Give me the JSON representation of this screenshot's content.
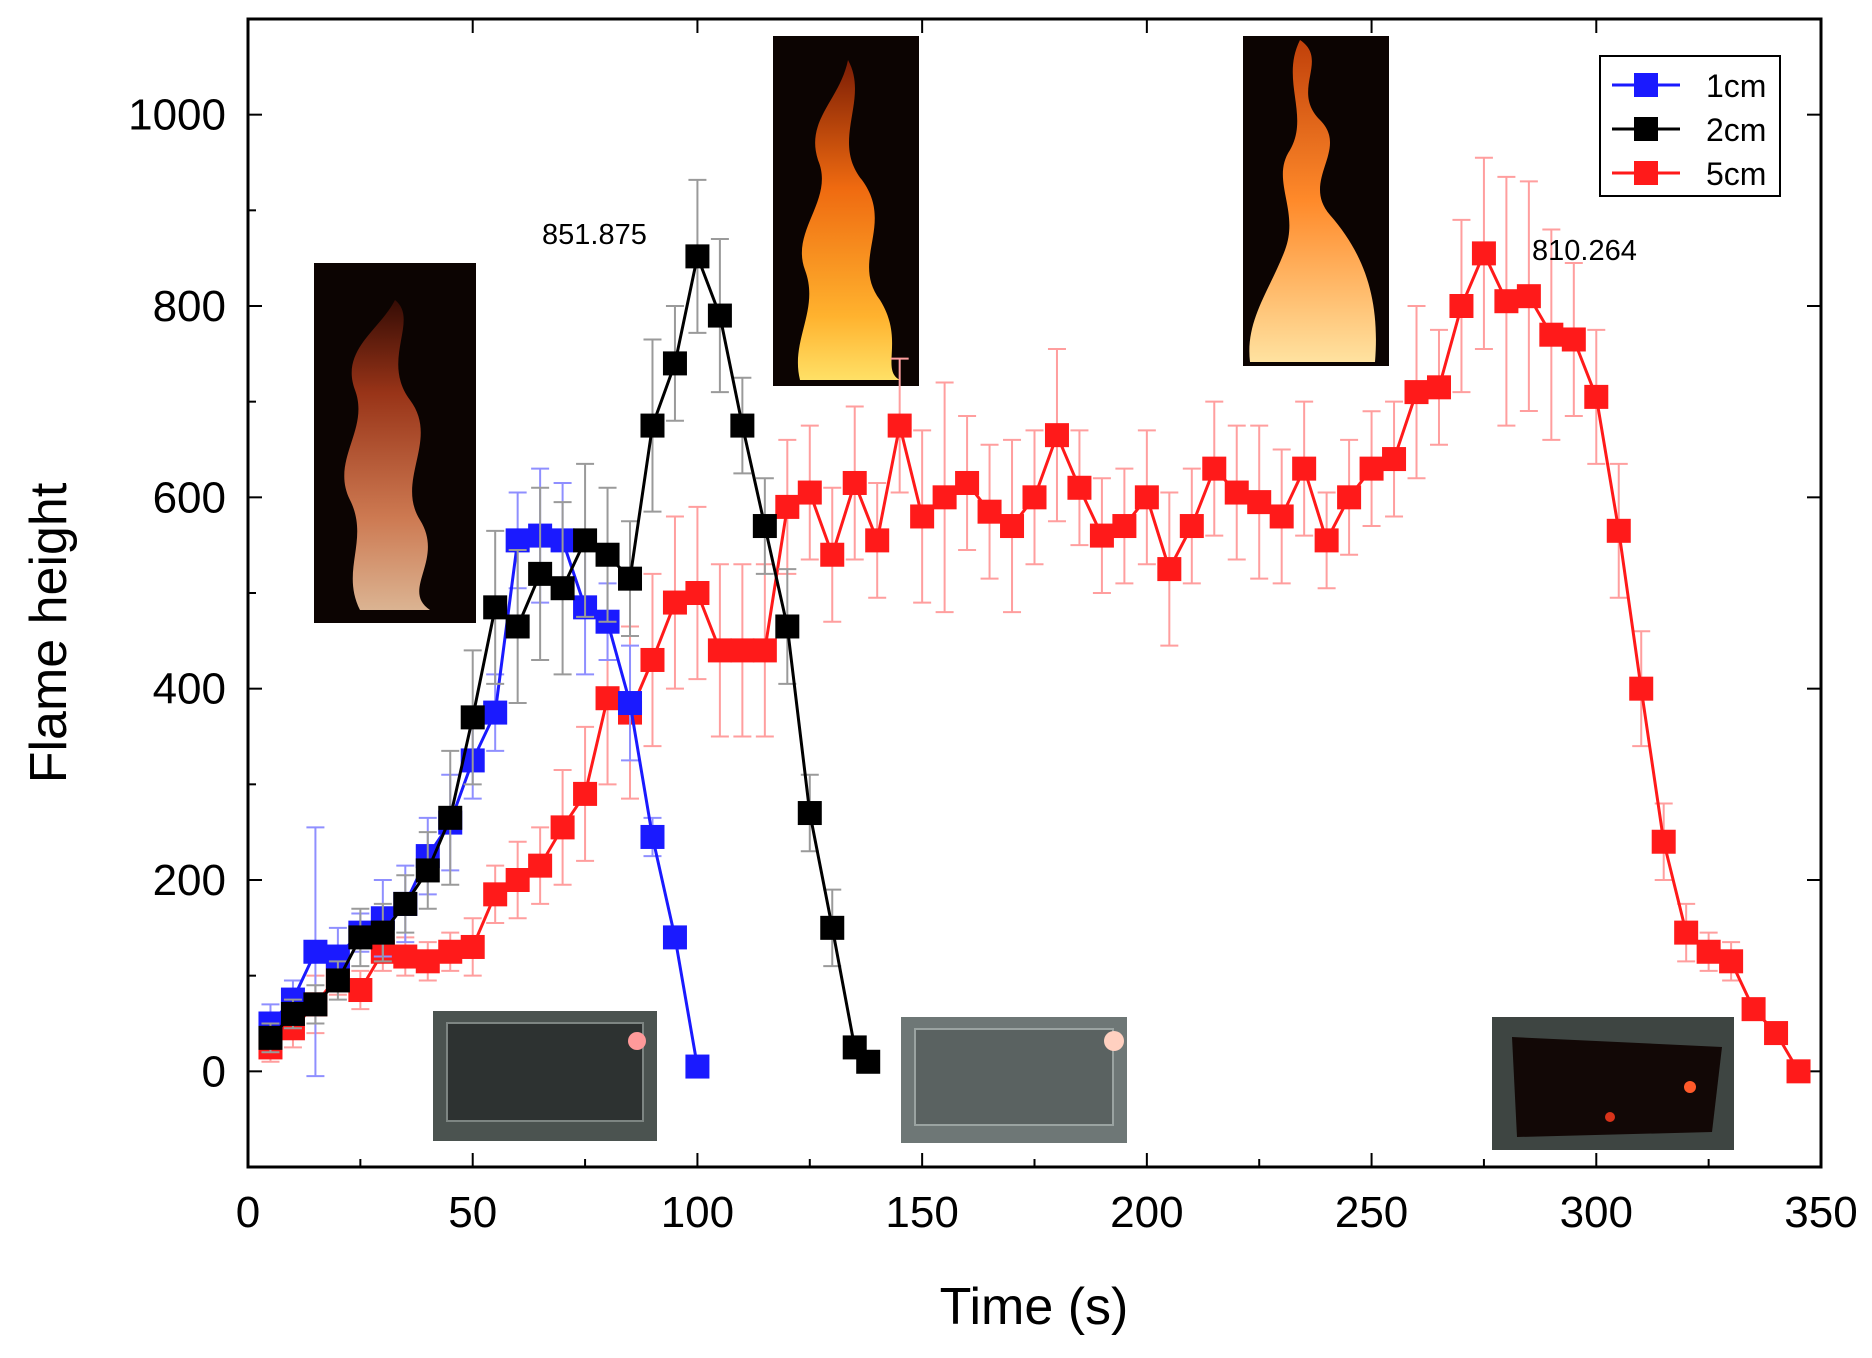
{
  "chart_data": {
    "type": "line",
    "title": "",
    "xlabel": "Time (s)",
    "ylabel": "Flame height",
    "xlim": [
      0,
      350
    ],
    "ylim": [
      -100,
      1100
    ],
    "xticks": [
      0,
      50,
      100,
      150,
      200,
      250,
      300,
      350
    ],
    "yticks": [
      0,
      200,
      400,
      600,
      800,
      1000
    ],
    "grid": false,
    "legend_position": "top-right",
    "colors": {
      "1cm": "#1a1aff",
      "2cm": "#000000",
      "5cm": "#ff1a1a"
    },
    "series": [
      {
        "name": "1cm",
        "x": [
          5,
          10,
          15,
          20,
          25,
          30,
          35,
          40,
          45,
          50,
          55,
          60,
          65,
          70,
          75,
          80,
          85,
          90,
          95,
          100
        ],
        "y": [
          50,
          75,
          125,
          120,
          145,
          160,
          175,
          225,
          260,
          325,
          375,
          555,
          560,
          555,
          485,
          470,
          385,
          245,
          140,
          5
        ],
        "err": [
          20,
          20,
          130,
          30,
          20,
          40,
          40,
          40,
          50,
          40,
          40,
          50,
          70,
          60,
          70,
          40,
          60,
          20,
          10,
          8
        ]
      },
      {
        "name": "2cm",
        "x": [
          5,
          10,
          15,
          20,
          25,
          30,
          35,
          40,
          45,
          50,
          55,
          60,
          65,
          70,
          75,
          80,
          85,
          90,
          95,
          100,
          105,
          110,
          115,
          120,
          125,
          130,
          135,
          138
        ],
        "y": [
          35,
          60,
          70,
          95,
          140,
          145,
          175,
          210,
          265,
          370,
          485,
          465,
          520,
          505,
          555,
          540,
          515,
          675,
          740,
          851.875,
          790,
          675,
          570,
          465,
          270,
          150,
          25,
          10
        ],
        "err": [
          15,
          15,
          20,
          20,
          30,
          30,
          30,
          40,
          70,
          70,
          80,
          80,
          90,
          90,
          80,
          70,
          60,
          90,
          60,
          80,
          80,
          50,
          50,
          60,
          40,
          40,
          10,
          10
        ]
      },
      {
        "name": "5cm",
        "x": [
          5,
          10,
          15,
          20,
          25,
          30,
          35,
          40,
          45,
          50,
          55,
          60,
          65,
          70,
          75,
          80,
          85,
          90,
          95,
          100,
          105,
          110,
          115,
          120,
          125,
          130,
          135,
          140,
          145,
          150,
          155,
          160,
          165,
          170,
          175,
          180,
          185,
          190,
          195,
          200,
          205,
          210,
          215,
          220,
          225,
          230,
          235,
          240,
          245,
          250,
          255,
          260,
          265,
          270,
          275,
          280,
          285,
          290,
          295,
          300,
          305,
          310,
          315,
          320,
          325,
          330,
          335,
          340,
          345
        ],
        "y": [
          25,
          45,
          70,
          100,
          85,
          125,
          120,
          115,
          125,
          130,
          185,
          200,
          215,
          255,
          290,
          390,
          375,
          430,
          490,
          500,
          440,
          440,
          440,
          590,
          605,
          540,
          615,
          555,
          675,
          580,
          600,
          615,
          585,
          570,
          600,
          665,
          610,
          560,
          570,
          600,
          525,
          570,
          630,
          605,
          595,
          580,
          630,
          555,
          600,
          630,
          640,
          710,
          715,
          800,
          855,
          805,
          810.264,
          770,
          765,
          705,
          565,
          400,
          240,
          145,
          125,
          115,
          65,
          40,
          0
        ],
        "err": [
          15,
          20,
          30,
          20,
          20,
          20,
          20,
          20,
          20,
          30,
          30,
          40,
          40,
          60,
          70,
          90,
          90,
          90,
          90,
          90,
          90,
          90,
          90,
          70,
          70,
          70,
          80,
          60,
          70,
          90,
          120,
          70,
          70,
          90,
          70,
          90,
          60,
          60,
          60,
          70,
          80,
          60,
          70,
          70,
          80,
          70,
          70,
          50,
          60,
          60,
          60,
          90,
          60,
          90,
          100,
          130,
          120,
          110,
          80,
          70,
          70,
          60,
          40,
          30,
          20,
          20,
          10,
          10,
          10
        ]
      }
    ],
    "annotations": [
      "851.875",
      "810.264"
    ]
  },
  "images": {
    "flame_1cm": "flame photograph (1cm)",
    "flame_2cm": "flame photograph (2cm)",
    "flame_5cm": "flame photograph (5cm)",
    "residue_1cm": "burnt residue photograph (1cm)",
    "residue_2cm": "burnt residue photograph (2cm)",
    "residue_5cm": "burnt residue photograph (5cm)"
  }
}
